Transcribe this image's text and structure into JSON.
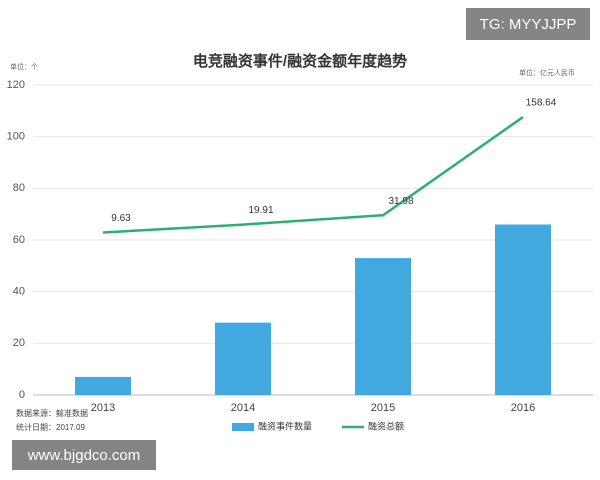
{
  "chart_data": {
    "type": "bar_line",
    "title": "电竞融资事件/融资金额年度趋势",
    "y_unit": "单位：个",
    "y2_unit": "单位：亿元人民币",
    "source": "数据来源：鲸准数据",
    "date": "统计日期：2017.09",
    "categories": [
      "2013",
      "2014",
      "2015",
      "2016"
    ],
    "series": [
      {
        "name": "融资事件数量",
        "color": "#42a8e0",
        "values": [
          7,
          28,
          53,
          66
        ]
      },
      {
        "name": "融资总额",
        "color": "#2bb070",
        "values": [
          9.63,
          19.91,
          31.98,
          158.64
        ],
        "axis": "y2"
      }
    ],
    "ylim": [
      0,
      120
    ],
    "yticks": [
      0,
      20,
      40,
      60,
      80,
      100,
      120
    ],
    "y2lim": [
      -200,
      200
    ],
    "grid": true,
    "legend": "bottom"
  },
  "watermarks": [
    "TG: MYYJJPP",
    "www.bjgdco.com"
  ]
}
